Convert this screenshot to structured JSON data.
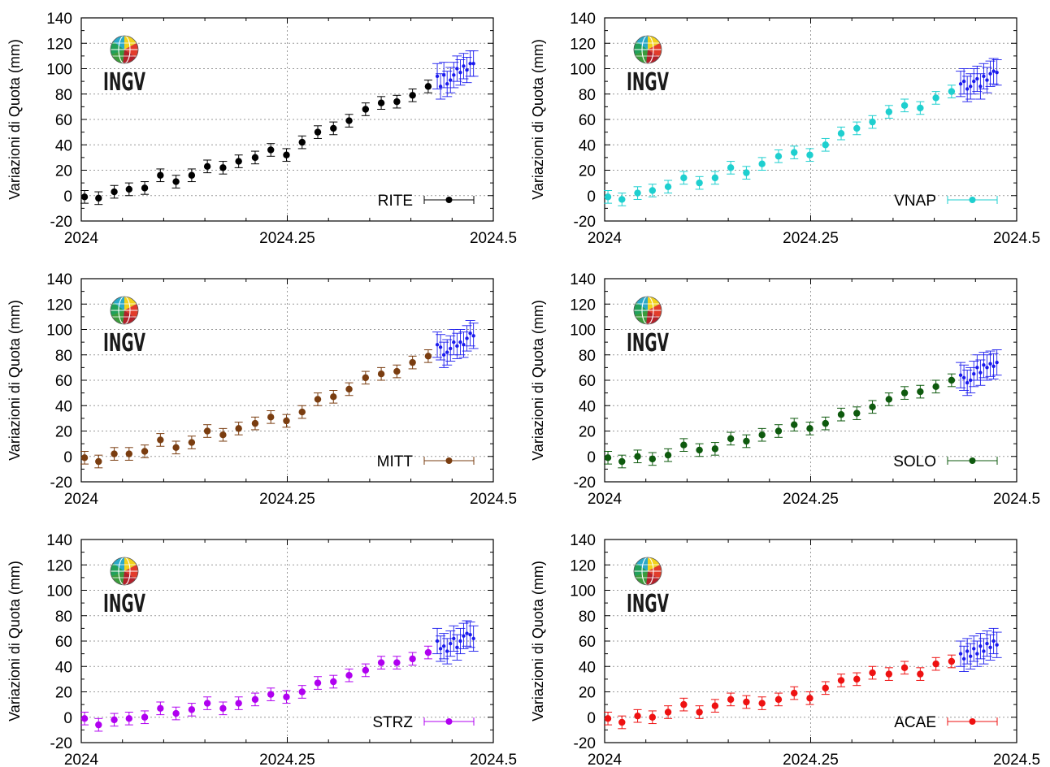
{
  "logo_text": "INGV",
  "ylabel": "Variazioni di Quota (mm)",
  "daily_color": "#1a1aee",
  "chart_data": [
    {
      "type": "scatter",
      "station": "RITE",
      "color": "#000000",
      "xlim": [
        2024,
        2024.5
      ],
      "ylim": [
        -20,
        140
      ],
      "xticks": [
        "2024",
        "2024.25",
        "2024.5"
      ],
      "yticks": [
        "140",
        "120",
        "100",
        "80",
        "60",
        "40",
        "20",
        "0",
        "-20"
      ],
      "weekly": {
        "x": [
          2024.004,
          2024.021,
          2024.04,
          2024.058,
          2024.077,
          2024.096,
          2024.115,
          2024.134,
          2024.153,
          2024.172,
          2024.191,
          2024.211,
          2024.23,
          2024.249,
          2024.268,
          2024.287,
          2024.306,
          2024.325,
          2024.345,
          2024.364,
          2024.383,
          2024.402,
          2024.421
        ],
        "y": [
          -1,
          -2,
          3,
          5,
          6,
          16,
          11,
          16,
          23,
          22,
          27,
          30,
          36,
          32,
          42,
          50,
          53,
          59,
          68,
          73,
          74,
          79,
          86
        ],
        "err": 5
      },
      "daily": {
        "x": [
          2024.432,
          2024.436,
          2024.44,
          2024.444,
          2024.448,
          2024.452,
          2024.456,
          2024.46,
          2024.464,
          2024.468,
          2024.472,
          2024.476
        ],
        "y": [
          94,
          86,
          95,
          88,
          91,
          95,
          100,
          97,
          102,
          99,
          104,
          104
        ],
        "err": 10
      }
    },
    {
      "type": "scatter",
      "station": "VNAP",
      "color": "#1ecfcf",
      "xlim": [
        2024,
        2024.5
      ],
      "ylim": [
        -20,
        140
      ],
      "xticks": [
        "2024",
        "2024.25",
        "2024.5"
      ],
      "yticks": [
        "140",
        "120",
        "100",
        "80",
        "60",
        "40",
        "20",
        "0",
        "-20"
      ],
      "weekly": {
        "x": [
          2024.004,
          2024.021,
          2024.04,
          2024.058,
          2024.077,
          2024.096,
          2024.115,
          2024.134,
          2024.153,
          2024.172,
          2024.191,
          2024.211,
          2024.23,
          2024.249,
          2024.268,
          2024.287,
          2024.306,
          2024.325,
          2024.345,
          2024.364,
          2024.383,
          2024.402,
          2024.421
        ],
        "y": [
          -1,
          -3,
          2,
          4,
          7,
          14,
          10,
          14,
          22,
          18,
          25,
          31,
          34,
          32,
          40,
          49,
          53,
          58,
          66,
          71,
          69,
          77,
          82
        ],
        "err": 5
      },
      "daily": {
        "x": [
          2024.432,
          2024.436,
          2024.44,
          2024.444,
          2024.448,
          2024.452,
          2024.456,
          2024.46,
          2024.464,
          2024.468,
          2024.472,
          2024.476
        ],
        "y": [
          88,
          90,
          84,
          86,
          90,
          92,
          86,
          94,
          91,
          96,
          98,
          97
        ],
        "err": 10
      }
    },
    {
      "type": "scatter",
      "station": "MITT",
      "color": "#7a3d10",
      "xlim": [
        2024,
        2024.5
      ],
      "ylim": [
        -20,
        140
      ],
      "xticks": [
        "2024",
        "2024.25",
        "2024.5"
      ],
      "yticks": [
        "140",
        "120",
        "100",
        "80",
        "60",
        "40",
        "20",
        "0",
        "-20"
      ],
      "weekly": {
        "x": [
          2024.004,
          2024.021,
          2024.04,
          2024.058,
          2024.077,
          2024.096,
          2024.115,
          2024.134,
          2024.153,
          2024.172,
          2024.191,
          2024.211,
          2024.23,
          2024.249,
          2024.268,
          2024.287,
          2024.306,
          2024.325,
          2024.345,
          2024.364,
          2024.383,
          2024.402,
          2024.421
        ],
        "y": [
          -1,
          -4,
          2,
          2,
          4,
          13,
          7,
          11,
          20,
          17,
          22,
          26,
          31,
          28,
          35,
          45,
          47,
          53,
          62,
          65,
          67,
          74,
          79
        ],
        "err": 5
      },
      "daily": {
        "x": [
          2024.432,
          2024.436,
          2024.44,
          2024.444,
          2024.448,
          2024.452,
          2024.456,
          2024.46,
          2024.464,
          2024.468,
          2024.472,
          2024.476
        ],
        "y": [
          88,
          86,
          80,
          82,
          85,
          90,
          87,
          90,
          88,
          93,
          97,
          95
        ],
        "err": 10
      }
    },
    {
      "type": "scatter",
      "station": "SOLO",
      "color": "#0e5a0e",
      "xlim": [
        2024,
        2024.5
      ],
      "ylim": [
        -20,
        140
      ],
      "xticks": [
        "2024",
        "2024.25",
        "2024.5"
      ],
      "yticks": [
        "140",
        "120",
        "100",
        "80",
        "60",
        "40",
        "20",
        "0",
        "-20"
      ],
      "weekly": {
        "x": [
          2024.004,
          2024.021,
          2024.04,
          2024.058,
          2024.077,
          2024.096,
          2024.115,
          2024.134,
          2024.153,
          2024.172,
          2024.191,
          2024.211,
          2024.23,
          2024.249,
          2024.268,
          2024.287,
          2024.306,
          2024.325,
          2024.345,
          2024.364,
          2024.383,
          2024.402,
          2024.421
        ],
        "y": [
          -1,
          -4,
          0,
          -2,
          1,
          9,
          5,
          6,
          14,
          12,
          17,
          20,
          25,
          22,
          26,
          33,
          34,
          39,
          45,
          50,
          51,
          55,
          60
        ],
        "err": 5
      },
      "daily": {
        "x": [
          2024.432,
          2024.436,
          2024.44,
          2024.444,
          2024.448,
          2024.452,
          2024.456,
          2024.46,
          2024.464,
          2024.468,
          2024.472,
          2024.476
        ],
        "y": [
          64,
          62,
          58,
          60,
          65,
          70,
          66,
          72,
          70,
          73,
          71,
          74
        ],
        "err": 10
      }
    },
    {
      "type": "scatter",
      "station": "STRZ",
      "color": "#b000f0",
      "xlim": [
        2024,
        2024.5
      ],
      "ylim": [
        -20,
        140
      ],
      "xticks": [
        "2024",
        "2024.25",
        "2024.5"
      ],
      "yticks": [
        "140",
        "120",
        "100",
        "80",
        "60",
        "40",
        "20",
        "0",
        "-20"
      ],
      "weekly": {
        "x": [
          2024.004,
          2024.021,
          2024.04,
          2024.058,
          2024.077,
          2024.096,
          2024.115,
          2024.134,
          2024.153,
          2024.172,
          2024.191,
          2024.211,
          2024.23,
          2024.249,
          2024.268,
          2024.287,
          2024.306,
          2024.325,
          2024.345,
          2024.364,
          2024.383,
          2024.402,
          2024.421
        ],
        "y": [
          -1,
          -6,
          -2,
          -1,
          0,
          7,
          3,
          6,
          11,
          7,
          11,
          14,
          18,
          16,
          20,
          27,
          28,
          33,
          37,
          43,
          43,
          46,
          51
        ],
        "err": 5
      },
      "daily": {
        "x": [
          2024.432,
          2024.436,
          2024.44,
          2024.444,
          2024.448,
          2024.452,
          2024.456,
          2024.46,
          2024.464,
          2024.468,
          2024.472,
          2024.476
        ],
        "y": [
          60,
          54,
          56,
          52,
          58,
          62,
          55,
          60,
          64,
          66,
          65,
          62
        ],
        "err": 10
      }
    },
    {
      "type": "scatter",
      "station": "ACAE",
      "color": "#ee1111",
      "xlim": [
        2024,
        2024.5
      ],
      "ylim": [
        -20,
        140
      ],
      "xticks": [
        "2024",
        "2024.25",
        "2024.5"
      ],
      "yticks": [
        "140",
        "120",
        "100",
        "80",
        "60",
        "40",
        "20",
        "0",
        "-20"
      ],
      "weekly": {
        "x": [
          2024.004,
          2024.021,
          2024.04,
          2024.058,
          2024.077,
          2024.096,
          2024.115,
          2024.134,
          2024.153,
          2024.172,
          2024.191,
          2024.211,
          2024.23,
          2024.249,
          2024.268,
          2024.287,
          2024.306,
          2024.325,
          2024.345,
          2024.364,
          2024.383,
          2024.402,
          2024.421
        ],
        "y": [
          -1,
          -4,
          1,
          0,
          4,
          10,
          4,
          9,
          14,
          12,
          11,
          14,
          19,
          15,
          23,
          29,
          30,
          35,
          34,
          39,
          34,
          42,
          44
        ],
        "err": 5
      },
      "daily": {
        "x": [
          2024.432,
          2024.436,
          2024.44,
          2024.444,
          2024.448,
          2024.452,
          2024.456,
          2024.46,
          2024.464,
          2024.468,
          2024.472,
          2024.476
        ],
        "y": [
          50,
          46,
          52,
          48,
          54,
          50,
          56,
          52,
          58,
          55,
          60,
          57
        ],
        "err": 10
      }
    }
  ]
}
